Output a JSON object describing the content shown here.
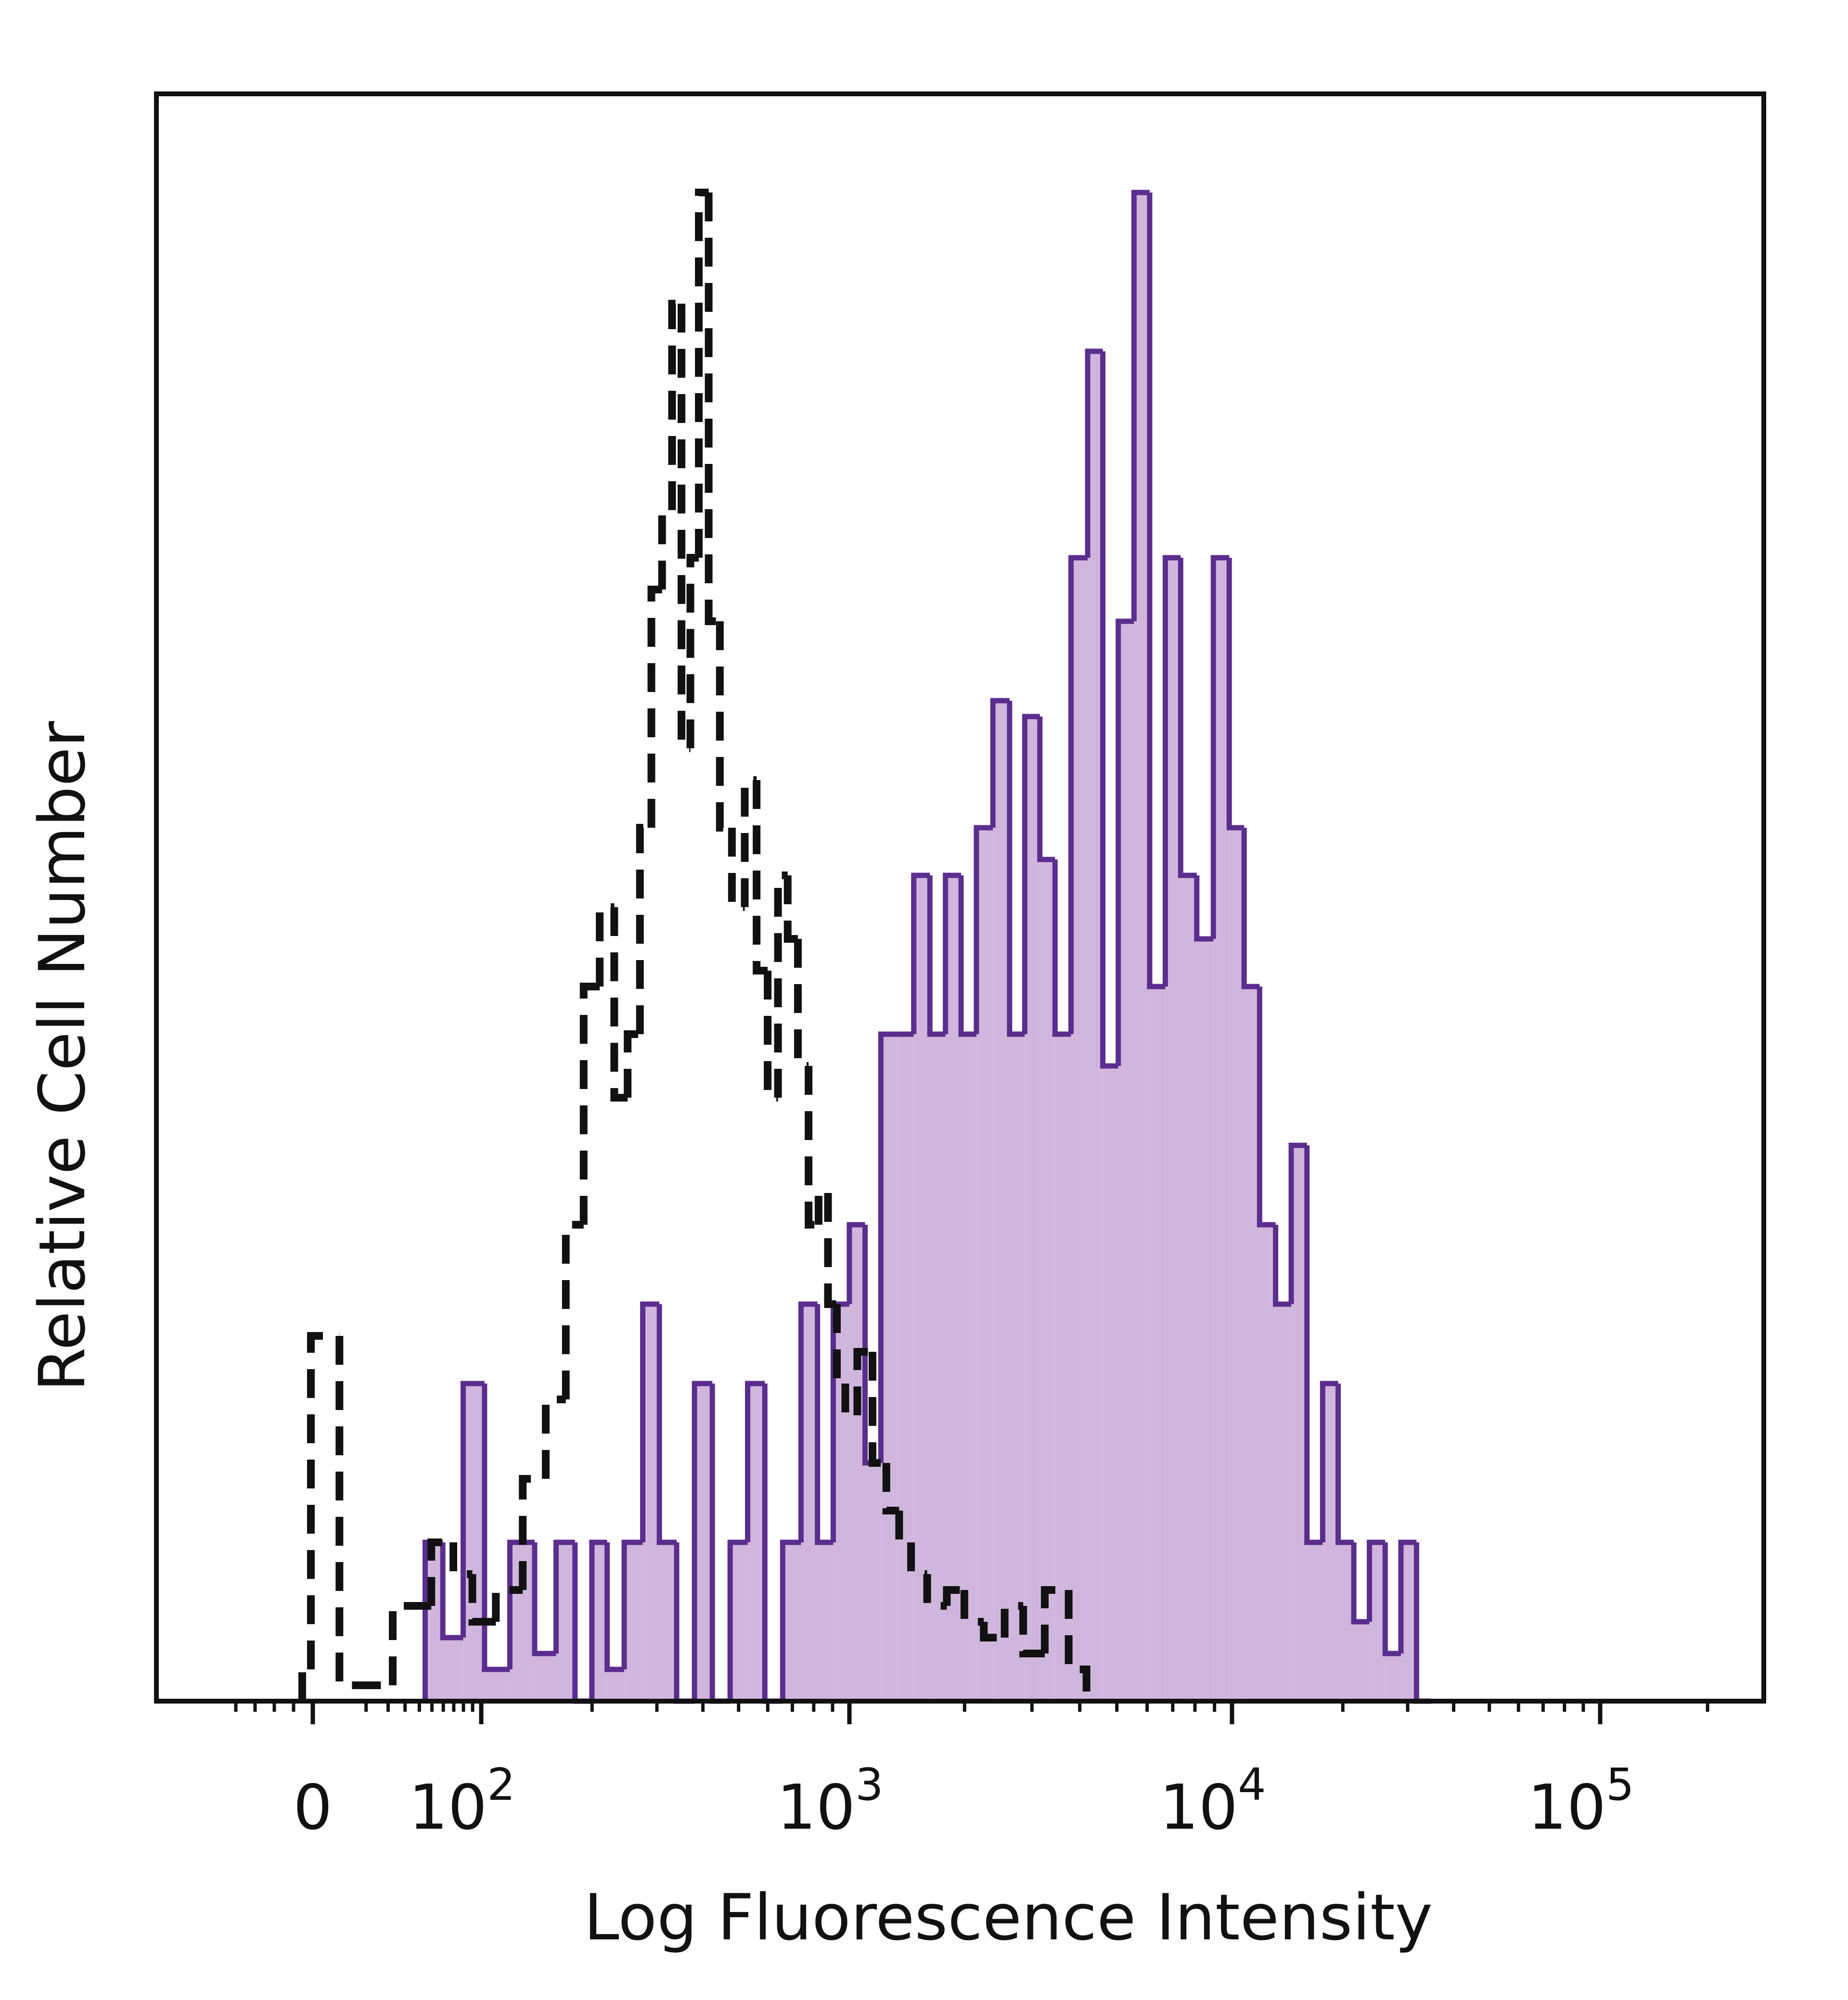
{
  "chart_data": {
    "type": "histogram",
    "xlabel": "Log Fluorescence Intensity",
    "ylabel": "Relative Cell Number",
    "x_scale": "biexponential (log with linear region around 0)",
    "xlim": [
      -200,
      250000
    ],
    "ylim": [
      0,
      100
    ],
    "x_ticks": [
      {
        "value": 0,
        "base": "0",
        "exp": ""
      },
      {
        "value": 100,
        "base": "10",
        "exp": "2"
      },
      {
        "value": 1000,
        "base": "10",
        "exp": "3"
      },
      {
        "value": 10000,
        "base": "10",
        "exp": "4"
      },
      {
        "value": 100000,
        "base": "10",
        "exp": "5"
      }
    ],
    "grid": false,
    "legend": "none",
    "series": [
      {
        "style": "dashed black outline (isotype control)",
        "color": "#111111",
        "x": [
          -10,
          0,
          10,
          40,
          60,
          80,
          100,
          120,
          140,
          160,
          180,
          200,
          220,
          240,
          260,
          280,
          300,
          320,
          340,
          360,
          380,
          400,
          430,
          460,
          500,
          540,
          580,
          620,
          660,
          700,
          750,
          800,
          850,
          900,
          950,
          1000,
          1100,
          1200,
          1300,
          1400,
          1500,
          1700,
          1900,
          2100,
          2400,
          2700,
          3000,
          3500,
          4000
        ],
        "values": [
          2,
          23,
          1,
          6,
          10,
          8,
          5,
          7,
          14,
          19,
          30,
          45,
          50,
          38,
          42,
          55,
          70,
          75,
          88,
          60,
          72,
          95,
          68,
          55,
          50,
          58,
          46,
          38,
          52,
          48,
          40,
          30,
          32,
          25,
          20,
          18,
          22,
          15,
          12,
          10,
          8,
          6,
          7,
          5,
          4,
          6,
          3,
          7,
          2
        ]
      },
      {
        "style": "purple outline with light purple fill (stained)",
        "color": "#5b2d8e",
        "fill": "#c8a9d6",
        "x": [
          50,
          70,
          90,
          110,
          130,
          150,
          170,
          190,
          210,
          230,
          260,
          290,
          320,
          360,
          400,
          450,
          500,
          560,
          620,
          700,
          780,
          860,
          950,
          1050,
          1150,
          1270,
          1400,
          1550,
          1700,
          1870,
          2050,
          2250,
          2500,
          2750,
          3000,
          3300,
          3600,
          4000,
          4400,
          4800,
          5300,
          5800,
          6400,
          7000,
          7700,
          8500,
          9400,
          10300,
          11300,
          12500,
          13800,
          15200,
          16800,
          18500,
          20400,
          22500,
          24800,
          27400,
          30200,
          33300
        ],
        "values": [
          10,
          4,
          20,
          2,
          10,
          3,
          10,
          0,
          10,
          2,
          10,
          25,
          10,
          0,
          20,
          0,
          10,
          20,
          0,
          10,
          25,
          10,
          25,
          30,
          15,
          42,
          42,
          52,
          42,
          52,
          42,
          55,
          63,
          42,
          62,
          53,
          42,
          72,
          85,
          40,
          68,
          95,
          45,
          72,
          52,
          48,
          72,
          55,
          45,
          30,
          25,
          35,
          10,
          20,
          10,
          5,
          10,
          3,
          10,
          0
        ]
      }
    ]
  }
}
